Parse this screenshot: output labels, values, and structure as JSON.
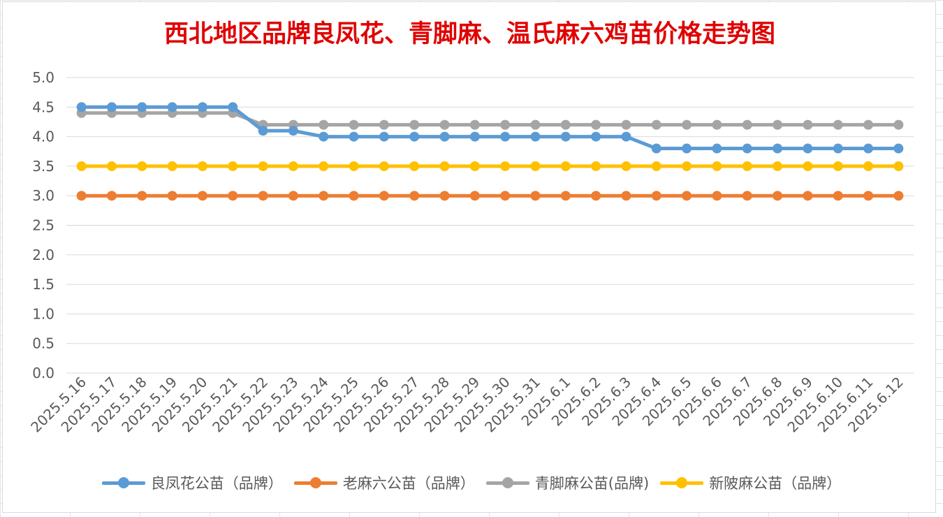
{
  "chart_data": {
    "type": "line",
    "title": "西北地区品牌良凤花、青脚麻、温氏麻六鸡苗价格走势图",
    "xlabel": "",
    "ylabel": "",
    "ylim": [
      0,
      5
    ],
    "ytick_labels": [
      "0.0",
      "0.5",
      "1.0",
      "1.5",
      "2.0",
      "2.5",
      "3.0",
      "3.5",
      "4.0",
      "4.5",
      "5.0"
    ],
    "grid": true,
    "legend_position": "bottom",
    "categories": [
      "2025.5.16",
      "2025.5.17",
      "2025.5.18",
      "2025.5.19",
      "2025.5.20",
      "2025.5.21",
      "2025.5.22",
      "2025.5.23",
      "2025.5.24",
      "2025.5.25",
      "2025.5.26",
      "2025.5.27",
      "2025.5.28",
      "2025.5.29",
      "2025.5.30",
      "2025.5.31",
      "2025.6.1",
      "2025.6.2",
      "2025.6.3",
      "2025.6.4",
      "2025.6.5",
      "2025.6.6",
      "2025.6.7",
      "2025.6.8",
      "2025.6.9",
      "2025.6.10",
      "2025.6.11",
      "2025.6.12"
    ],
    "series": [
      {
        "name": "良凤花公苗（品牌）",
        "color": "#5b9bd5",
        "values": [
          4.5,
          4.5,
          4.5,
          4.5,
          4.5,
          4.5,
          4.1,
          4.1,
          4.0,
          4.0,
          4.0,
          4.0,
          4.0,
          4.0,
          4.0,
          4.0,
          4.0,
          4.0,
          4.0,
          3.8,
          3.8,
          3.8,
          3.8,
          3.8,
          3.8,
          3.8,
          3.8,
          3.8
        ]
      },
      {
        "name": "老麻六公苗（品牌）",
        "color": "#ed7d31",
        "values": [
          3.0,
          3.0,
          3.0,
          3.0,
          3.0,
          3.0,
          3.0,
          3.0,
          3.0,
          3.0,
          3.0,
          3.0,
          3.0,
          3.0,
          3.0,
          3.0,
          3.0,
          3.0,
          3.0,
          3.0,
          3.0,
          3.0,
          3.0,
          3.0,
          3.0,
          3.0,
          3.0,
          3.0
        ]
      },
      {
        "name": "青脚麻公苗(品牌)",
        "color": "#a5a5a5",
        "values": [
          4.4,
          4.4,
          4.4,
          4.4,
          4.4,
          4.4,
          4.2,
          4.2,
          4.2,
          4.2,
          4.2,
          4.2,
          4.2,
          4.2,
          4.2,
          4.2,
          4.2,
          4.2,
          4.2,
          4.2,
          4.2,
          4.2,
          4.2,
          4.2,
          4.2,
          4.2,
          4.2,
          4.2
        ]
      },
      {
        "name": "新陂麻公苗（品牌）",
        "color": "#ffc000",
        "values": [
          3.5,
          3.5,
          3.5,
          3.5,
          3.5,
          3.5,
          3.5,
          3.5,
          3.5,
          3.5,
          3.5,
          3.5,
          3.5,
          3.5,
          3.5,
          3.5,
          3.5,
          3.5,
          3.5,
          3.5,
          3.5,
          3.5,
          3.5,
          3.5,
          3.5,
          3.5,
          3.5,
          3.5
        ]
      }
    ],
    "draw_order": [
      2,
      0,
      1,
      3
    ]
  }
}
